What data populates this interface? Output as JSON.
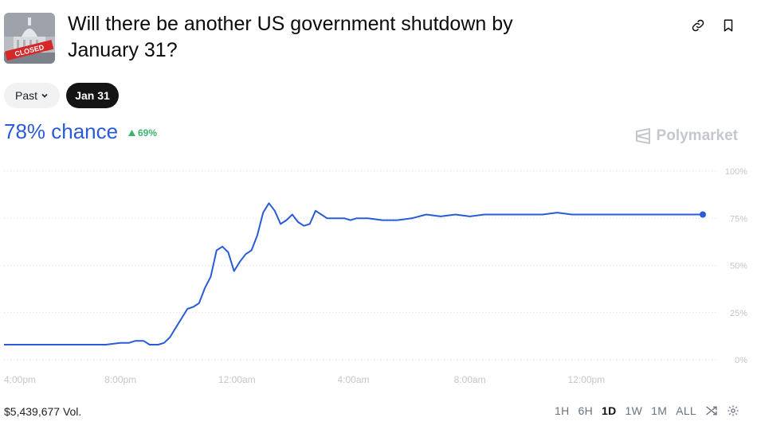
{
  "market": {
    "title": "Will there be another US government shutdown by January 31?",
    "thumbnail_stamp": "CLOSED"
  },
  "filters": {
    "past_label": "Past",
    "selected_date": "Jan 31"
  },
  "probability": {
    "chance_label": "78% chance",
    "delta_label": "69%"
  },
  "brand": {
    "name": "Polymarket"
  },
  "footer": {
    "volume_label": "$5,439,677 Vol.",
    "ranges": [
      "1H",
      "6H",
      "1D",
      "1W",
      "1M",
      "ALL"
    ],
    "active_range": "1D"
  },
  "colors": {
    "line": "#2a5bd7",
    "up": "#3cb371",
    "grid": "#d8dbe0",
    "axis_text": "#c3c6cc"
  },
  "chart_data": {
    "type": "line",
    "series": [
      {
        "x": [
          0,
          0.5,
          1,
          1.5,
          2,
          2.5,
          3,
          3.5,
          4,
          4.3,
          4.5,
          4.8,
          5,
          5.3,
          5.5,
          5.7,
          5.9,
          6.1,
          6.3,
          6.5,
          6.7,
          6.9,
          7.1,
          7.3,
          7.5,
          7.7,
          7.9,
          8.1,
          8.3,
          8.5,
          8.7,
          8.9,
          9.1,
          9.3,
          9.5,
          9.7,
          9.9,
          10.1,
          10.3,
          10.5,
          10.7,
          10.9,
          11.1,
          11.3,
          11.5,
          11.7,
          11.9,
          12.1,
          12.5,
          13,
          13.5,
          14,
          14.5,
          15,
          15.5,
          16,
          16.5,
          17,
          17.5,
          18,
          18.5,
          19,
          19.5,
          20,
          20.5,
          21,
          21.5,
          22,
          22.5,
          23,
          23.5,
          24
        ],
        "y": [
          8,
          8,
          8,
          8,
          8,
          8,
          8,
          8,
          9,
          9,
          10,
          10,
          8,
          8,
          9,
          12,
          17,
          22,
          27,
          28,
          30,
          38,
          44,
          58,
          60,
          57,
          47,
          52,
          56,
          58,
          66,
          78,
          83,
          79,
          72,
          74,
          77,
          73,
          71,
          72,
          79,
          77,
          75,
          75,
          75,
          75,
          74,
          75,
          75,
          74,
          74,
          75,
          77,
          76,
          77,
          76,
          77,
          77,
          77,
          77,
          77,
          78,
          77,
          77,
          77,
          77,
          77,
          77,
          77,
          77,
          77,
          77
        ]
      }
    ],
    "x_ticks": [
      {
        "x": 0,
        "label": "4:00pm"
      },
      {
        "x": 4,
        "label": "8:00pm"
      },
      {
        "x": 8,
        "label": "12:00am"
      },
      {
        "x": 12,
        "label": "4:00am"
      },
      {
        "x": 16,
        "label": "8:00am"
      },
      {
        "x": 20,
        "label": "12:00pm"
      }
    ],
    "y_ticks": [
      {
        "y": 100,
        "label": "100%"
      },
      {
        "y": 75,
        "label": "75%"
      },
      {
        "y": 50,
        "label": "50%"
      },
      {
        "y": 25,
        "label": "25%"
      },
      {
        "y": 0,
        "label": "0%"
      }
    ],
    "ylim": [
      0,
      100
    ],
    "xlim": [
      0,
      24
    ],
    "grid": true
  }
}
